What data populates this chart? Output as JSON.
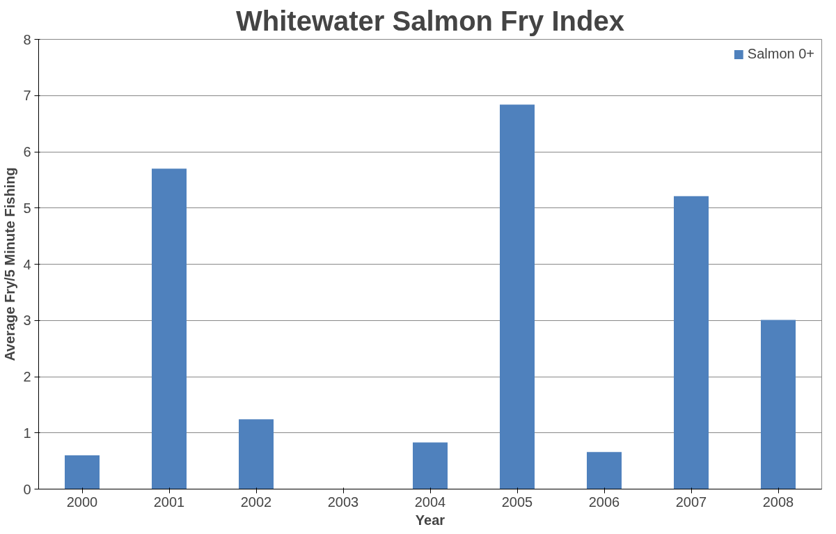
{
  "chart_data": {
    "type": "bar",
    "title": "Whitewater Salmon Fry Index",
    "xlabel": "Year",
    "ylabel": "Average Fry/5 Minute Fishing",
    "categories": [
      "2000",
      "2001",
      "2002",
      "2003",
      "2004",
      "2005",
      "2006",
      "2007",
      "2008"
    ],
    "series": [
      {
        "name": "Salmon 0+",
        "color": "#4f81bd",
        "values": [
          0.6,
          5.7,
          1.24,
          0,
          0.83,
          6.84,
          0.66,
          5.21,
          3.01
        ]
      }
    ],
    "ylim": [
      0,
      8
    ],
    "yticks": [
      0,
      1,
      2,
      3,
      4,
      5,
      6,
      7,
      8
    ],
    "grid": "y",
    "legend": "top right"
  }
}
